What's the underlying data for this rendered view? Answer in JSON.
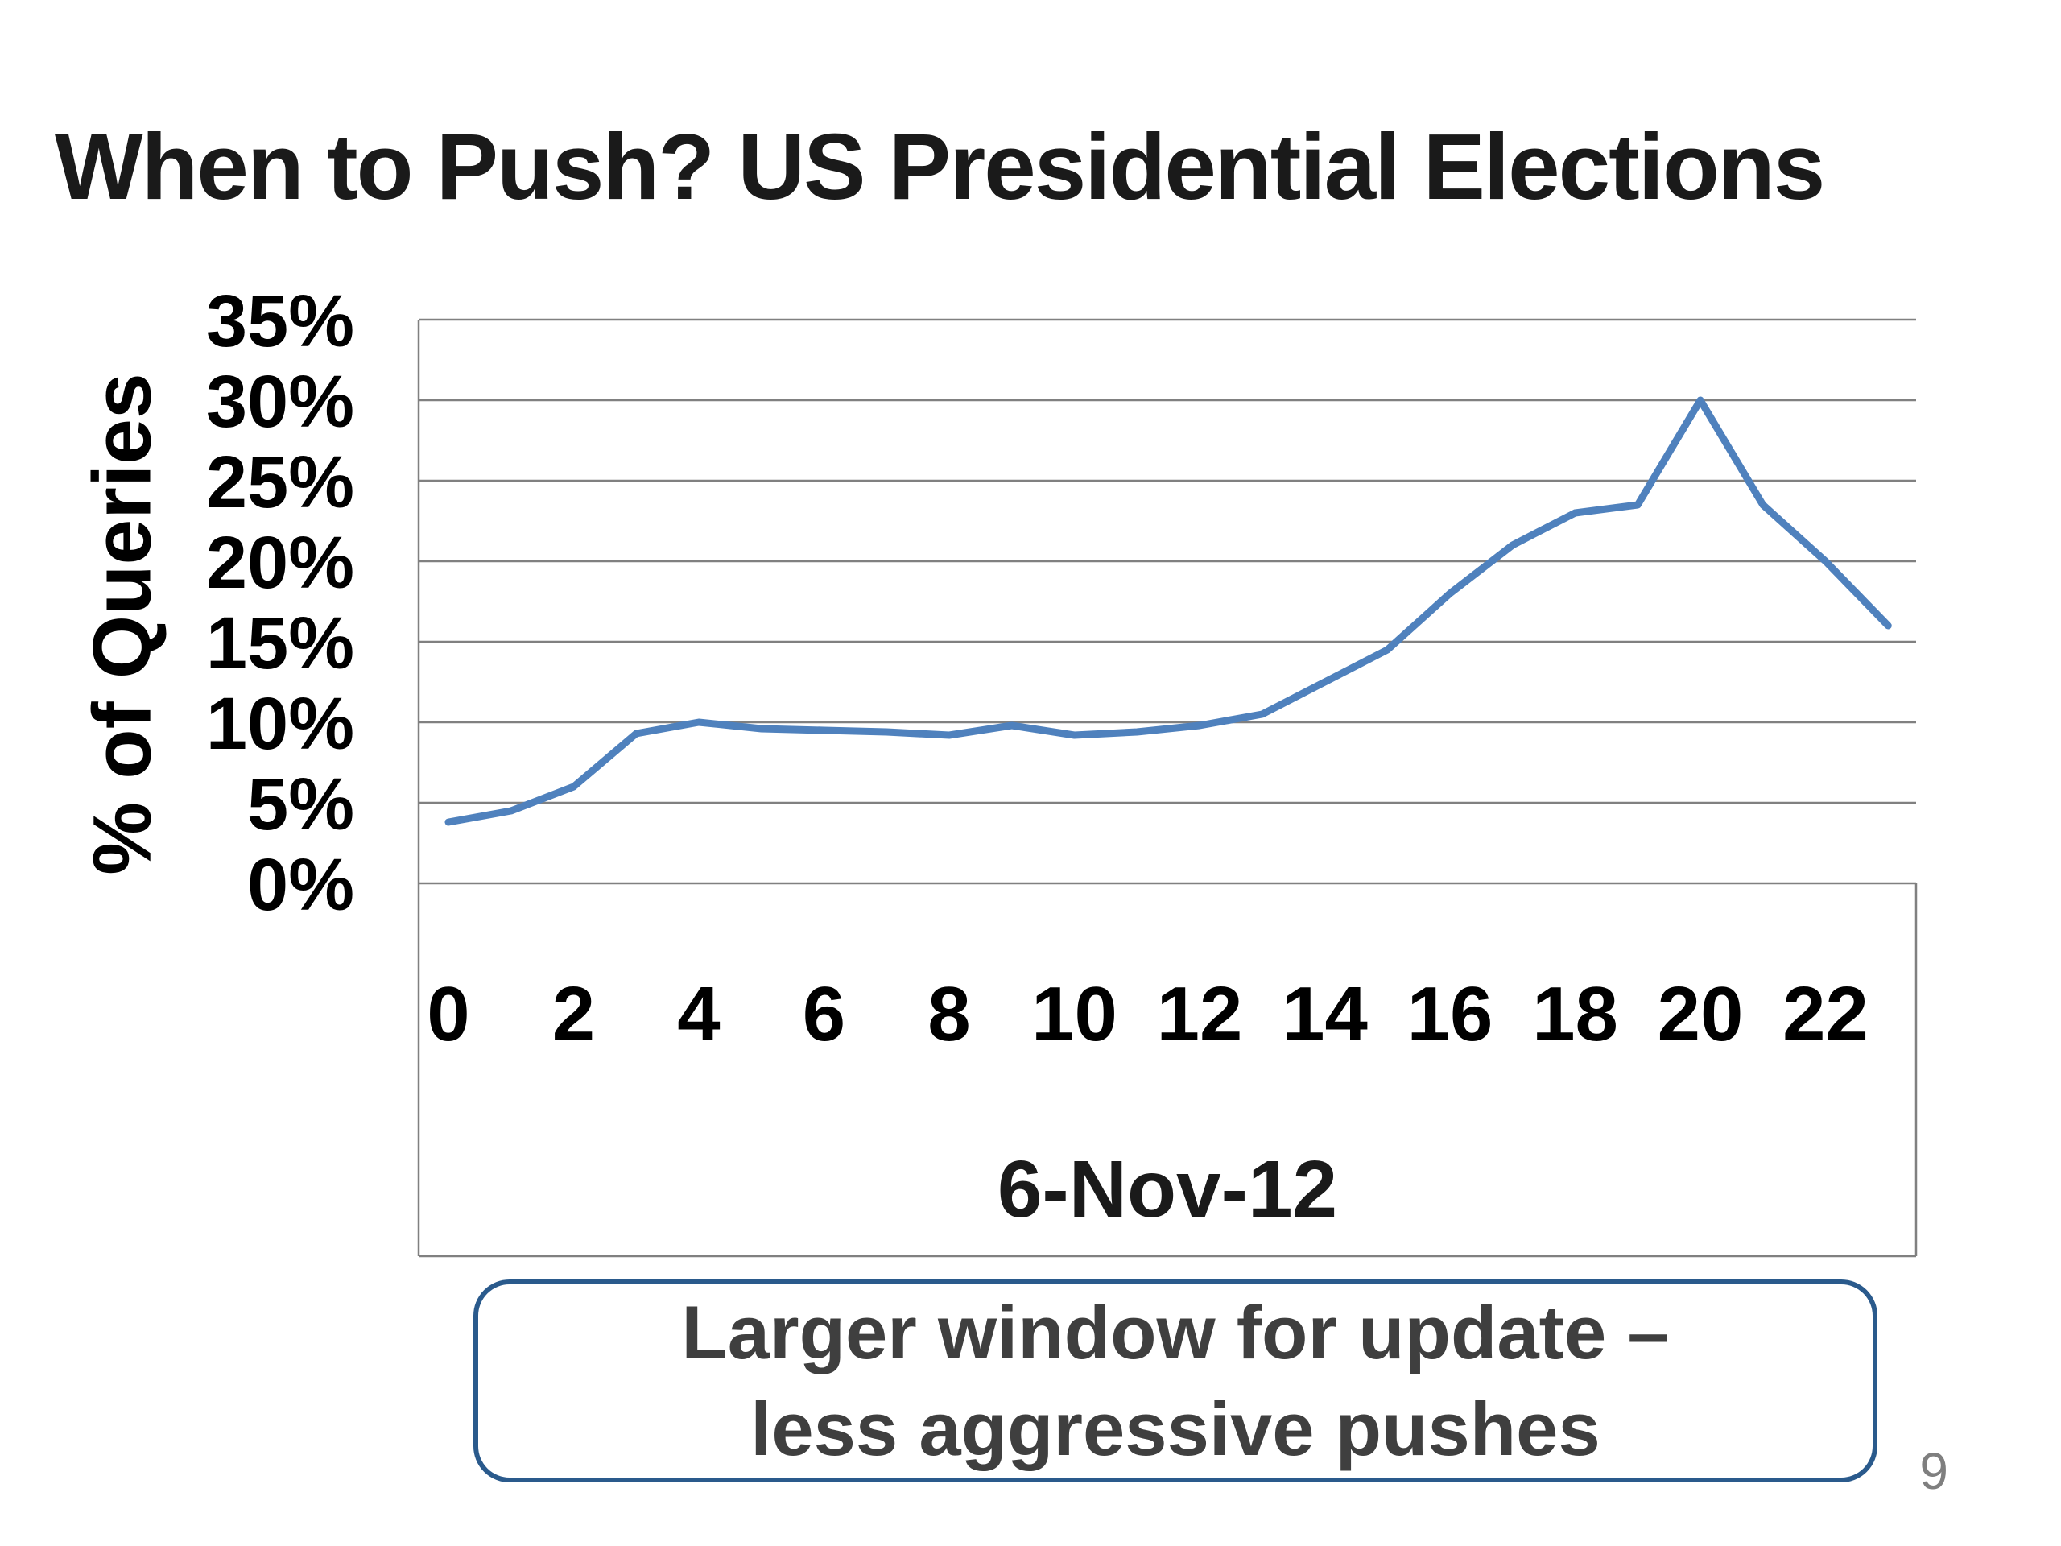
{
  "slide": {
    "title": "When to Push? US Presidential Elections",
    "page_number": "9"
  },
  "callout": {
    "line1": "Larger window for update –",
    "line2": "less aggressive pushes"
  },
  "colors": {
    "line": "#4F81BD",
    "grid": "#808080",
    "callout_border": "#2a5a8c",
    "page_number": "#7f7f7f"
  },
  "chart_data": {
    "type": "line",
    "title": "",
    "ylabel": "% of Queries",
    "x_axis_label": "6-Nov-12",
    "x": [
      0,
      1,
      2,
      3,
      4,
      5,
      6,
      7,
      8,
      9,
      10,
      11,
      12,
      13,
      14,
      15,
      16,
      17,
      18,
      19,
      20,
      21,
      22,
      23
    ],
    "values": [
      3.8,
      4.5,
      6,
      9.3,
      10,
      9.6,
      9.5,
      9.4,
      9.2,
      9.8,
      9.2,
      9.4,
      9.8,
      10.5,
      12.5,
      14.5,
      18,
      21,
      23,
      23.5,
      30,
      23.5,
      20,
      16
    ],
    "ylim": [
      0,
      35
    ],
    "y_tick_step": 5,
    "y_tick_labels": [
      "35%",
      "30%",
      "25%",
      "20%",
      "15%",
      "10%",
      "5%",
      "0%"
    ],
    "x_tick_labels": [
      "0",
      "2",
      "4",
      "6",
      "8",
      "10",
      "12",
      "14",
      "16",
      "18",
      "20",
      "22"
    ],
    "grid": true,
    "legend": "none",
    "line_color": "#4F81BD",
    "grid_color": "#808080"
  }
}
